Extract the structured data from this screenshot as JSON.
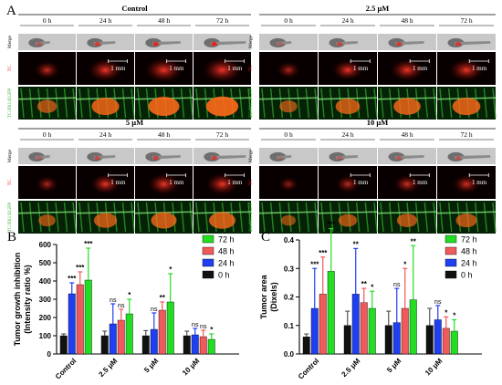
{
  "panels": {
    "a": {
      "label": "A",
      "times": [
        "0 h",
        "24 h",
        "48 h",
        "72 h"
      ],
      "row_labels": [
        "Merge",
        "TC",
        "TC/Fli1:EGFP"
      ],
      "scale_bar": "1 mm",
      "groups": [
        {
          "title": "Control"
        },
        {
          "title": "2.5 μM"
        },
        {
          "title": "5 μM"
        },
        {
          "title": "10 μM"
        }
      ]
    },
    "b": {
      "label": "B"
    },
    "c": {
      "label": "C"
    }
  },
  "colors": {
    "72 h": "#22dd22",
    "48 h": "#f05a5a",
    "24 h": "#1f3ff2",
    "0 h": "#111111",
    "tc": "#e8231d",
    "egfp": "#32b02e"
  },
  "chart_data": [
    {
      "type": "bar",
      "panel": "B",
      "categories": [
        "Control",
        "2.5 μM",
        "5 μM",
        "10 μM"
      ],
      "ylabel": "Tumor growth inhibition (Intensity ratio %)",
      "ylim": [
        0,
        600
      ],
      "yticks": [
        "0",
        "100",
        "200",
        "300",
        "400",
        "500",
        "600"
      ],
      "legend_position": "top-right",
      "series": [
        {
          "name": "0 h",
          "color": "#111111",
          "values": [
            100,
            100,
            100,
            100
          ],
          "errors": [
            10,
            25,
            28,
            25
          ],
          "sig": [
            "",
            "",
            "",
            ""
          ]
        },
        {
          "name": "24 h",
          "color": "#1f3ff2",
          "values": [
            330,
            165,
            135,
            105
          ],
          "errors": [
            60,
            110,
            90,
            35
          ],
          "sig": [
            "***",
            "ns",
            "ns",
            "ns"
          ]
        },
        {
          "name": "48 h",
          "color": "#f05a5a",
          "values": [
            380,
            185,
            240,
            95
          ],
          "errors": [
            70,
            60,
            45,
            35
          ],
          "sig": [
            "***",
            "ns",
            "**",
            "ns"
          ]
        },
        {
          "name": "72 h",
          "color": "#22dd22",
          "values": [
            405,
            220,
            285,
            80
          ],
          "errors": [
            175,
            80,
            155,
            30
          ],
          "sig": [
            "***",
            "*",
            "*",
            "*"
          ]
        }
      ]
    },
    {
      "type": "bar",
      "panel": "C",
      "categories": [
        "Control",
        "2.5 μM",
        "5 μM",
        "10 μM"
      ],
      "ylabel": "Tumor area (Dixels)",
      "ylim": [
        0,
        0.4
      ],
      "yticks": [
        "0.0",
        "0.1",
        "0.2",
        "0.3",
        "0.4"
      ],
      "legend_position": "top-right",
      "series": [
        {
          "name": "0 h",
          "color": "#111111",
          "values": [
            0.06,
            0.1,
            0.1,
            0.1
          ],
          "errors": [
            0.01,
            0.05,
            0.05,
            0.06
          ],
          "sig": [
            "",
            "",
            "",
            ""
          ]
        },
        {
          "name": "24 h",
          "color": "#1f3ff2",
          "values": [
            0.16,
            0.21,
            0.11,
            0.12
          ],
          "errors": [
            0.14,
            0.16,
            0.12,
            0.05
          ],
          "sig": [
            "***",
            "**",
            "ns",
            "ns"
          ]
        },
        {
          "name": "48 h",
          "color": "#f05a5a",
          "values": [
            0.21,
            0.18,
            0.16,
            0.09
          ],
          "errors": [
            0.13,
            0.05,
            0.14,
            0.04
          ],
          "sig": [
            "***",
            "**",
            "*",
            "*"
          ]
        },
        {
          "name": "72 h",
          "color": "#22dd22",
          "values": [
            0.29,
            0.16,
            0.19,
            0.08
          ],
          "errors": [
            0.15,
            0.06,
            0.19,
            0.04
          ],
          "sig": [
            "***",
            "*",
            "**",
            "*"
          ]
        }
      ]
    }
  ]
}
